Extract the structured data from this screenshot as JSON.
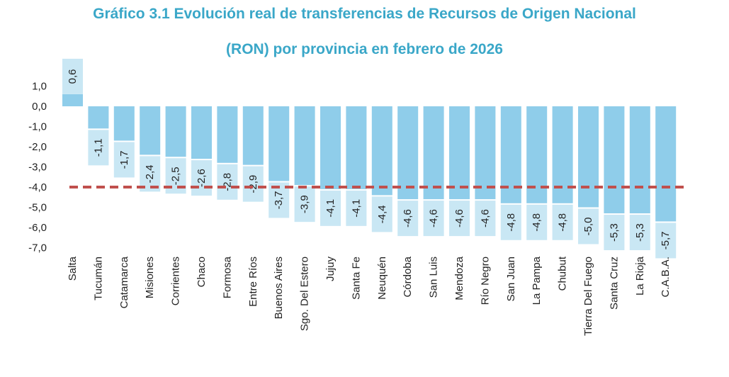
{
  "chart_data": {
    "type": "bar",
    "title_line1": "Gráfico 3.1 Evolución real de transferencias de Recursos de Origen Nacional",
    "title_line2": "(RON) por provincia en febrero de 2026",
    "categories": [
      "Salta",
      "Tucumán",
      "Catamarca",
      "Misiones",
      "Corrientes",
      "Chaco",
      "Formosa",
      "Entre Ríos",
      "Buenos Aires",
      "Sgo. Del Estero",
      "Jujuy",
      "Santa Fe",
      "Neuquén",
      "Córdoba",
      "San Luis",
      "Mendoza",
      "Río Negro",
      "San Juan",
      "La Pampa",
      "Chubut",
      "Tierra Del Fuego",
      "Santa Cruz",
      "La Rioja",
      "C.A.B.A."
    ],
    "values": [
      0.6,
      -1.1,
      -1.7,
      -2.4,
      -2.5,
      -2.6,
      -2.8,
      -2.9,
      -3.7,
      -3.9,
      -4.1,
      -4.1,
      -4.4,
      -4.6,
      -4.6,
      -4.6,
      -4.6,
      -4.8,
      -4.8,
      -4.8,
      -5.0,
      -5.3,
      -5.3,
      -5.7
    ],
    "data_labels": [
      "0,6",
      "-1,1",
      "-1,7",
      "-2,4",
      "-2,5",
      "-2,6",
      "-2,8",
      "-2,9",
      "-3,7",
      "-3,9",
      "-4,1",
      "-4,1",
      "-4,4",
      "-4,6",
      "-4,6",
      "-4,6",
      "-4,6",
      "-4,8",
      "-4,8",
      "-4,8",
      "-5,0",
      "-5,3",
      "-5,3",
      "-5,7"
    ],
    "yticks": [
      1.0,
      0.0,
      -1.0,
      -2.0,
      -3.0,
      -4.0,
      -5.0,
      -6.0,
      -7.0
    ],
    "ytick_labels": [
      "1,0",
      "0,0",
      "-1,0",
      "-2,0",
      "-3,0",
      "-4,0",
      "-5,0",
      "-6,0",
      "-7,0"
    ],
    "ylim": [
      -7.0,
      1.0
    ],
    "reference_line": -4.0,
    "grid": false,
    "colors": {
      "bar": "#8FCDEA",
      "label_box": "#C9E7F4",
      "reference_line": "#C0504D",
      "title": "#3AA7C8"
    }
  }
}
